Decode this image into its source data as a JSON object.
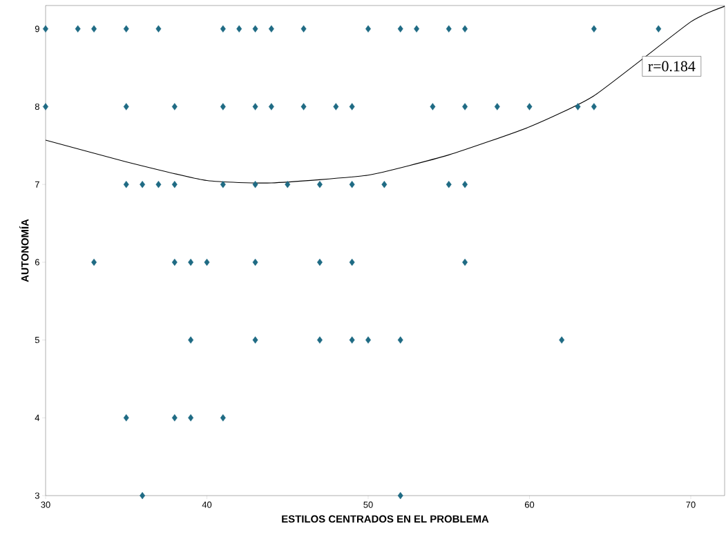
{
  "chart_data": {
    "type": "scatter",
    "xlabel": "ESTILOS CENTRADOS EN EL PROBLEMA",
    "ylabel": "AUTONOMÍA",
    "xlim": [
      30,
      72.1
    ],
    "ylim": [
      3,
      9.3
    ],
    "xticks": [
      30,
      40,
      50,
      60,
      70
    ],
    "yticks": [
      3,
      4,
      5,
      6,
      7,
      8,
      9
    ],
    "grid": false,
    "annotations": [
      "r=0.184"
    ],
    "series": [
      {
        "color": "#1f6b84",
        "marker": "diamond",
        "x": [
          30,
          32,
          33,
          35,
          37,
          41,
          42,
          43,
          44,
          46,
          50,
          52,
          53,
          55,
          56,
          64,
          68,
          30,
          35,
          38,
          41,
          43,
          44,
          46,
          48,
          49,
          54,
          56,
          58,
          60,
          63,
          64,
          35,
          36,
          37,
          38,
          41,
          43,
          45,
          47,
          49,
          51,
          55,
          56,
          33,
          38,
          39,
          40,
          43,
          47,
          49,
          56,
          39,
          43,
          47,
          49,
          50,
          52,
          62,
          35,
          38,
          39,
          41,
          36,
          52
        ],
        "values": [
          9,
          9,
          9,
          9,
          9,
          9,
          9,
          9,
          9,
          9,
          9,
          9,
          9,
          9,
          9,
          9,
          9,
          8,
          8,
          8,
          8,
          8,
          8,
          8,
          8,
          8,
          8,
          8,
          8,
          8,
          8,
          8,
          7,
          7,
          7,
          7,
          7,
          7,
          7,
          7,
          7,
          7,
          7,
          7,
          6,
          6,
          6,
          6,
          6,
          6,
          6,
          6,
          5,
          5,
          5,
          5,
          5,
          5,
          5,
          4,
          4,
          4,
          4,
          3,
          3
        ]
      },
      {
        "type": "line",
        "color": "#000000",
        "marker": "none",
        "x": [
          30,
          35,
          40,
          44,
          50,
          55,
          60,
          64,
          70,
          72.1
        ],
        "values": [
          7.57,
          7.29,
          7.05,
          7.02,
          7.12,
          7.38,
          7.74,
          8.14,
          9.09,
          9.29
        ]
      }
    ]
  }
}
